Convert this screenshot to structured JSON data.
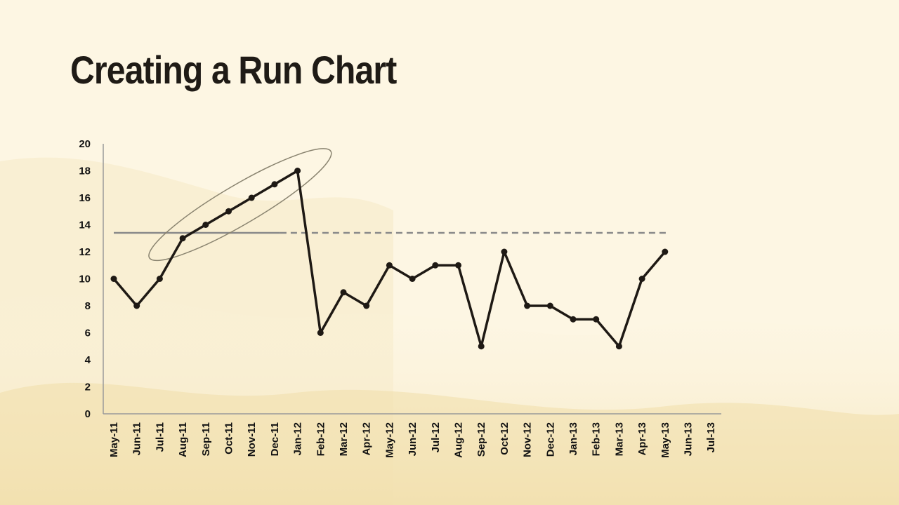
{
  "slide": {
    "title": "Creating a Run Chart"
  },
  "colors": {
    "background": "#fdf6e3",
    "wash": "#f5e6bf",
    "series_line": "#1e1914",
    "median_line": "#8a8a8a",
    "axis": "#9a9a9a",
    "highlight_ellipse": "#8a8470"
  },
  "chart_data": {
    "type": "line",
    "title": "",
    "xlabel": "",
    "ylabel": "",
    "categories": [
      "May-11",
      "Jun-11",
      "Jul-11",
      "Aug-11",
      "Sep-11",
      "Oct-11",
      "Nov-11",
      "Dec-11",
      "Jan-12",
      "Feb-12",
      "Mar-12",
      "Apr-12",
      "May-12",
      "Jun-12",
      "Jul-12",
      "Aug-12",
      "Sep-12",
      "Oct-12",
      "Nov-12",
      "Dec-12",
      "Jan-13",
      "Feb-13",
      "Mar-13",
      "Apr-13",
      "May-13",
      "Jun-13",
      "Jul-13"
    ],
    "series": [
      {
        "values": [
          10,
          8,
          10,
          13,
          14,
          15,
          16,
          17,
          18,
          6,
          9,
          8,
          11,
          10,
          11,
          11,
          5,
          12,
          8,
          8,
          7,
          7,
          5,
          10,
          12,
          null,
          null
        ]
      }
    ],
    "ylim": [
      0,
      20
    ],
    "yticks": [
      0,
      2,
      4,
      6,
      8,
      10,
      12,
      14,
      16,
      18,
      20
    ],
    "median": 13.4,
    "median_solid_until": "Dec-11",
    "grid": false,
    "legend": "none",
    "annotations": [
      {
        "type": "ellipse",
        "note": "highlighted run of increasing points",
        "from": "Aug-11",
        "to": "Jan-12"
      }
    ]
  }
}
